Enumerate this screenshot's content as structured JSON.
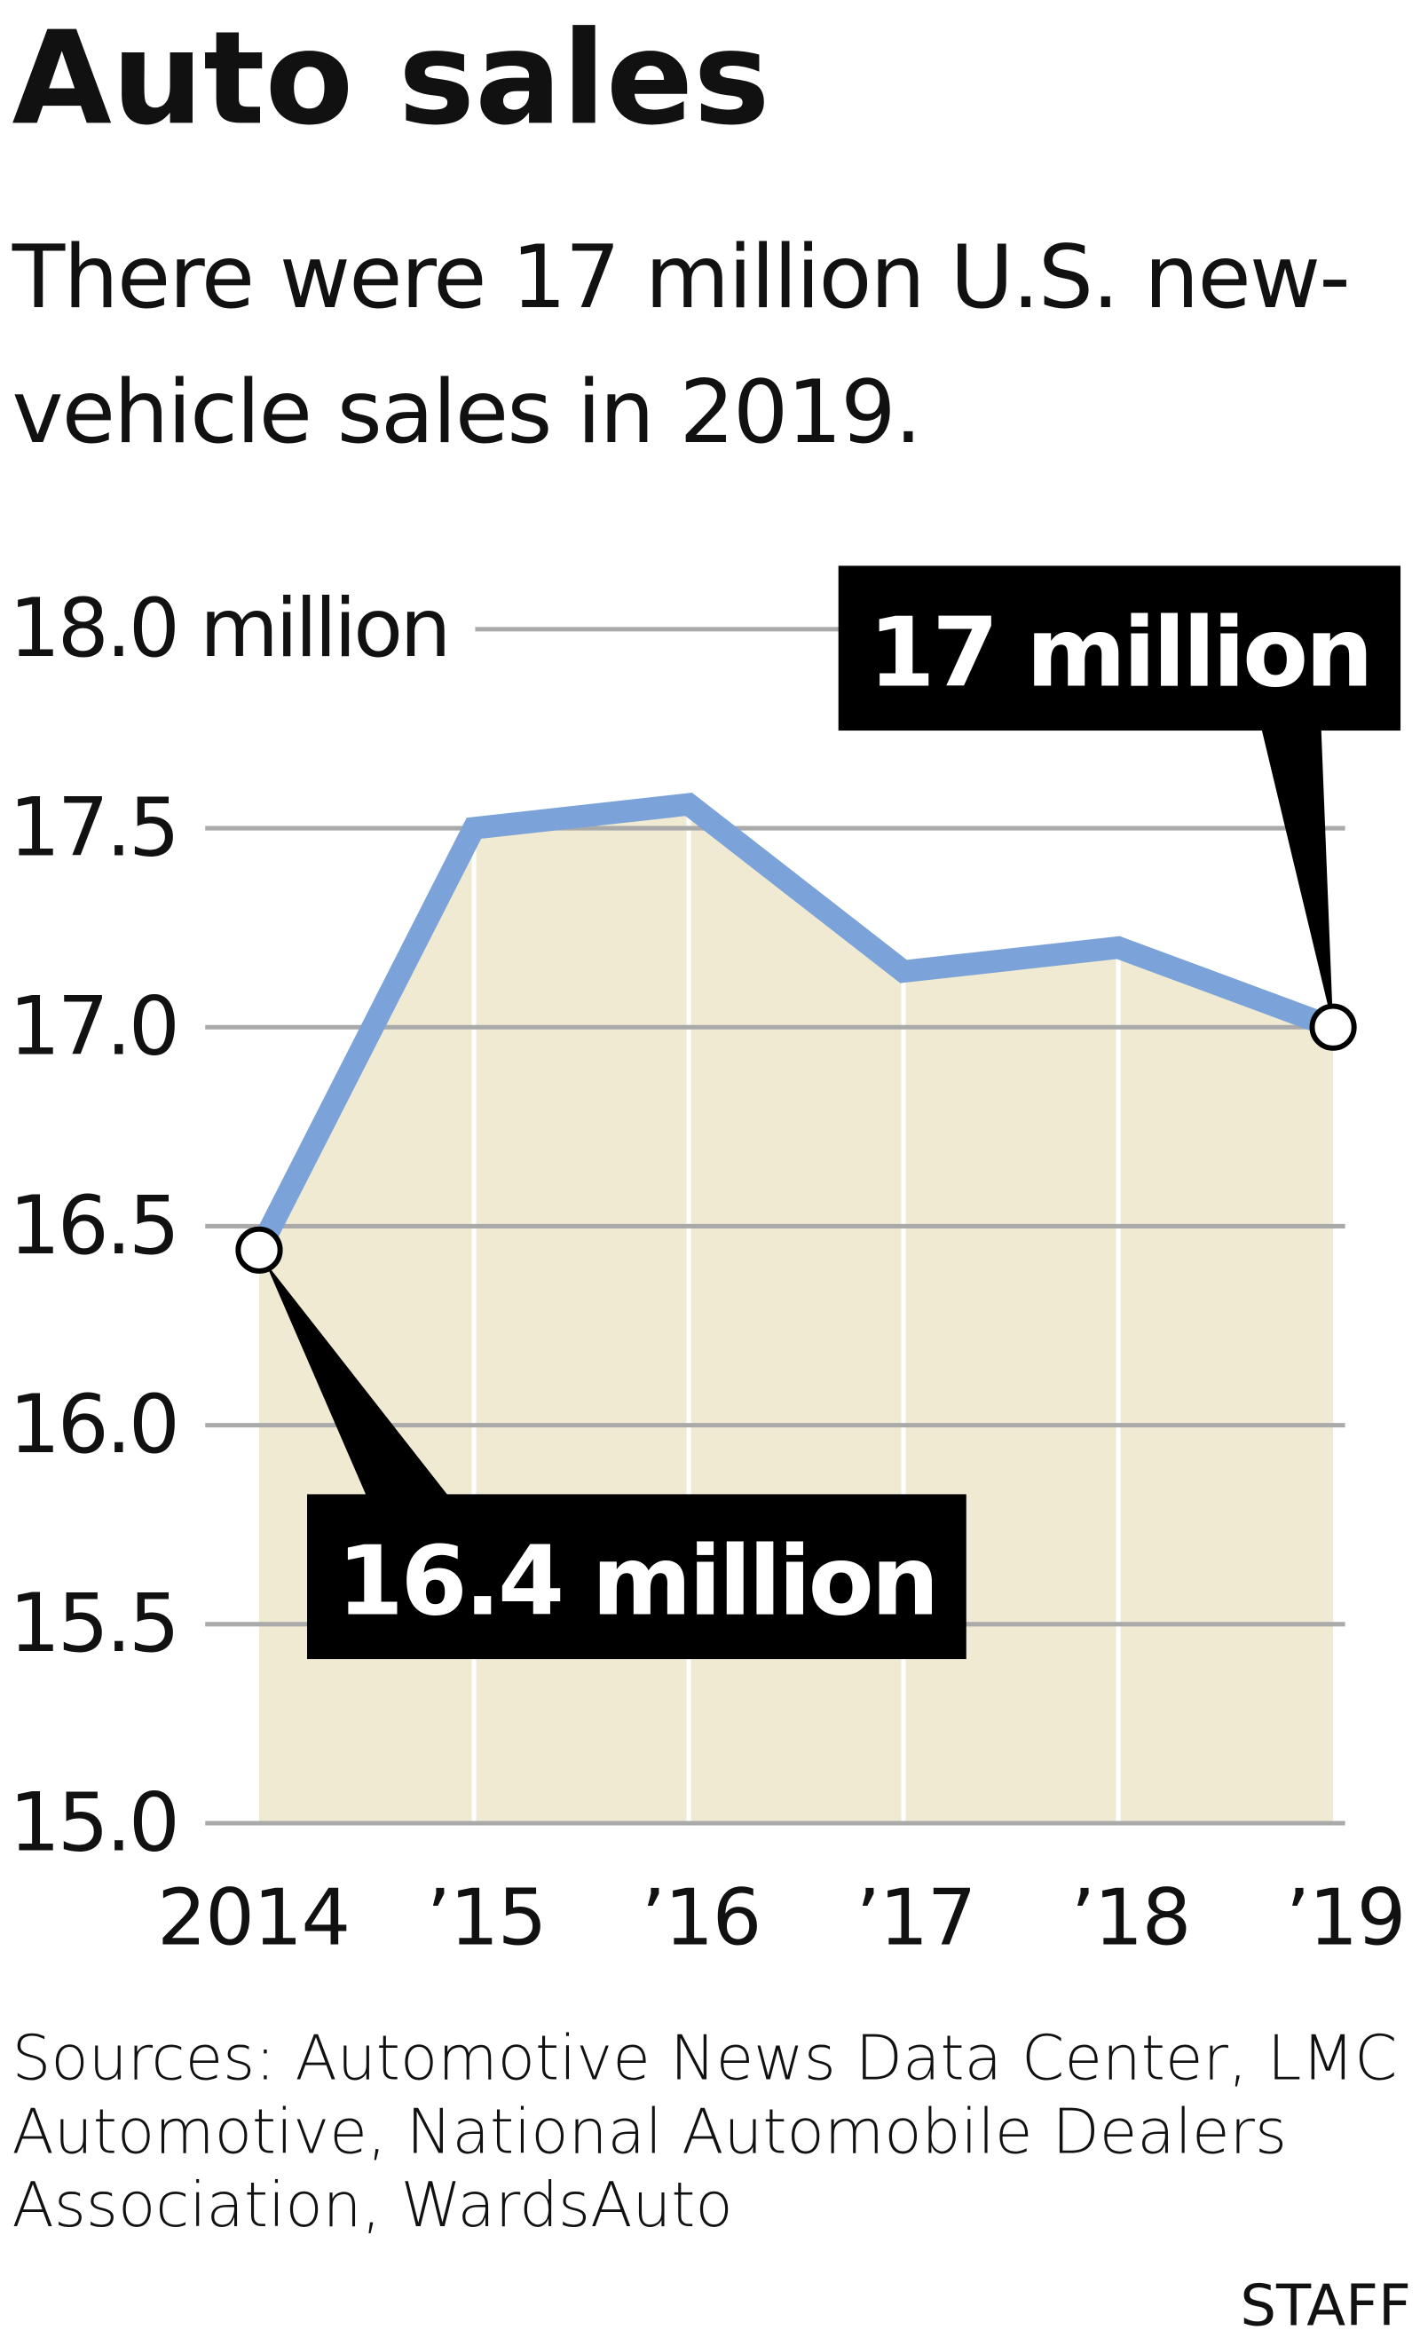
{
  "chart_data": {
    "type": "line",
    "title": "Auto sales",
    "subtitle": "There were 17 million U.S. new-vehicle sales in 2019.",
    "categories": [
      "2014",
      "’15",
      "’16",
      "’17",
      "’18",
      "’19"
    ],
    "values": [
      16.44,
      17.5,
      17.56,
      17.14,
      17.2,
      17.0
    ],
    "value_labels": [
      "16.4 million",
      null,
      null,
      null,
      null,
      "17 million"
    ],
    "color": "#7ba3d9",
    "area_color": "#f0ead2",
    "ylim": [
      15,
      18
    ],
    "yticks": [
      {
        "value": 15,
        "label": "15.0"
      },
      {
        "value": 15.5,
        "label": "15.5"
      },
      {
        "value": 16,
        "label": "16.0"
      },
      {
        "value": 16.5,
        "label": "16.5"
      },
      {
        "value": 17,
        "label": "17.0"
      },
      {
        "value": 17.5,
        "label": "17.5"
      },
      {
        "value": 18,
        "label": "18.0 million"
      }
    ],
    "grid": true,
    "source": "Sources: Automotive News Data Center, LMC Automotive, National Automobile Dealers Association, WardsAuto",
    "credit": "STAFF"
  }
}
